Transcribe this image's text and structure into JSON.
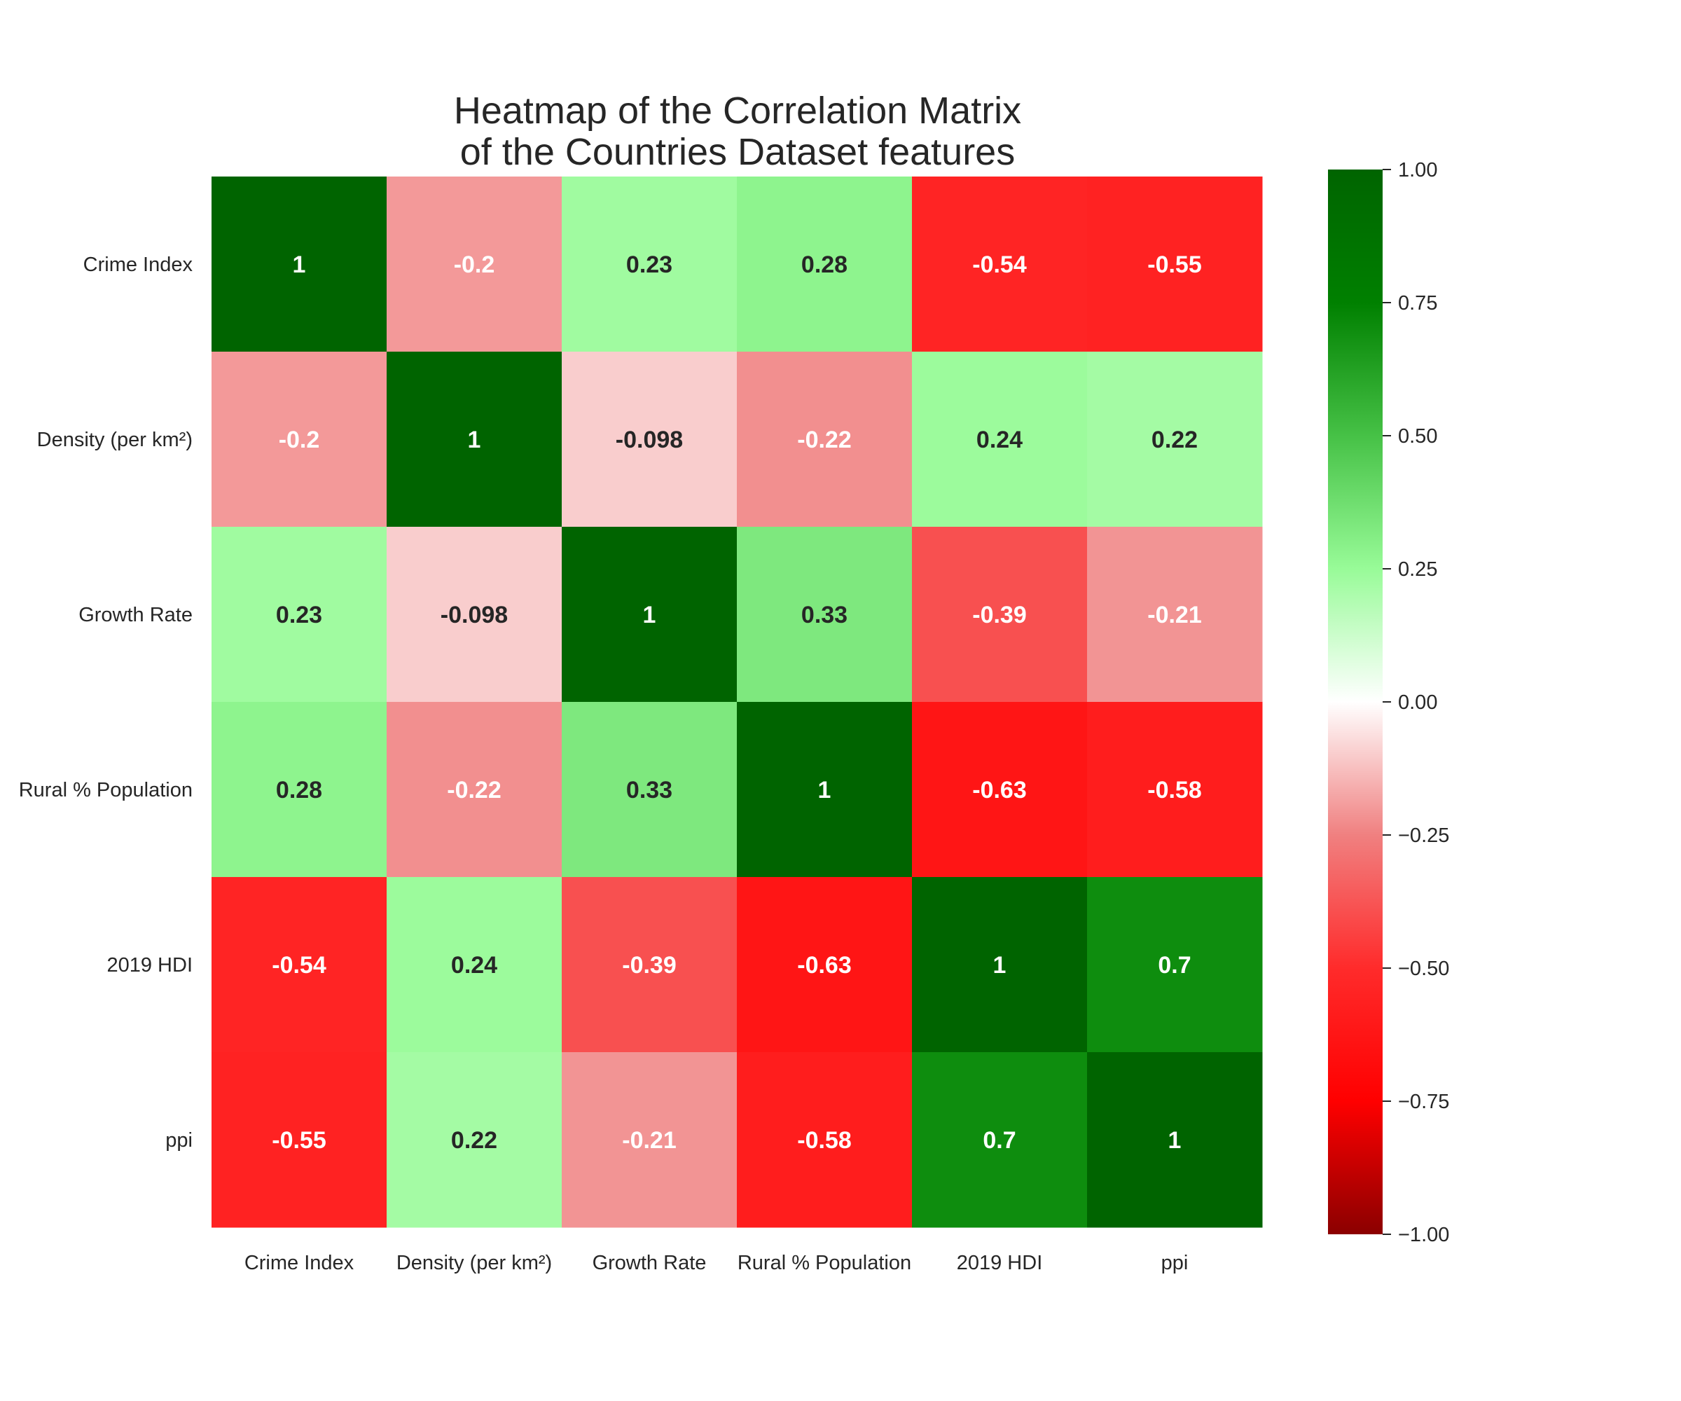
{
  "chart_data": {
    "type": "heatmap",
    "title_lines": [
      "Heatmap of the Correlation Matrix",
      "of the Countries Dataset features"
    ],
    "rows": [
      "Crime Index",
      "Density (per km²)",
      "Growth Rate",
      "Rural % Population",
      "2019 HDI",
      "ppi"
    ],
    "columns": [
      "Crime Index",
      "Density (per km²)",
      "Growth Rate",
      "Rural % Population",
      "2019 HDI",
      "ppi"
    ],
    "values": [
      [
        1,
        -0.2,
        0.23,
        0.28,
        -0.54,
        -0.55
      ],
      [
        -0.2,
        1,
        -0.098,
        -0.22,
        0.24,
        0.22
      ],
      [
        0.23,
        -0.098,
        1,
        0.33,
        -0.39,
        -0.21
      ],
      [
        0.28,
        -0.22,
        0.33,
        1,
        -0.63,
        -0.58
      ],
      [
        -0.54,
        0.24,
        -0.39,
        -0.63,
        1,
        0.7
      ],
      [
        -0.55,
        0.22,
        -0.21,
        -0.58,
        0.7,
        1
      ]
    ],
    "value_labels": [
      [
        "1",
        "-0.2",
        "0.23",
        "0.28",
        "-0.54",
        "-0.55"
      ],
      [
        "-0.2",
        "1",
        "-0.098",
        "-0.22",
        "0.24",
        "0.22"
      ],
      [
        "0.23",
        "-0.098",
        "1",
        "0.33",
        "-0.39",
        "-0.21"
      ],
      [
        "0.28",
        "-0.22",
        "0.33",
        "1",
        "-0.63",
        "-0.58"
      ],
      [
        "-0.54",
        "0.24",
        "-0.39",
        "-0.63",
        "1",
        "0.7"
      ],
      [
        "-0.55",
        "0.22",
        "-0.21",
        "-0.58",
        "0.7",
        "1"
      ]
    ],
    "colorbar": {
      "range": [
        -1,
        1
      ],
      "ticks": [
        1.0,
        0.75,
        0.5,
        0.25,
        0.0,
        -0.25,
        -0.5,
        -0.75,
        -1.0
      ],
      "tick_labels": [
        "1.00",
        "0.75",
        "0.50",
        "0.25",
        "0.00",
        "−0.25",
        "−0.50",
        "−0.75",
        "−1.00"
      ],
      "color_stops": [
        {
          "value": -1.0,
          "color": "#8b0000"
        },
        {
          "value": -0.75,
          "color": "#ff0000"
        },
        {
          "value": -0.5,
          "color": "#ff2b2b"
        },
        {
          "value": -0.25,
          "color": "#f08080"
        },
        {
          "value": 0.0,
          "color": "#ffffff"
        },
        {
          "value": 0.25,
          "color": "#98fb98"
        },
        {
          "value": 0.5,
          "color": "#46c146"
        },
        {
          "value": 0.75,
          "color": "#008000"
        },
        {
          "value": 1.0,
          "color": "#006400"
        }
      ]
    },
    "annotation_colors": {
      "light": "#ffffff",
      "dark": "#262626"
    }
  }
}
